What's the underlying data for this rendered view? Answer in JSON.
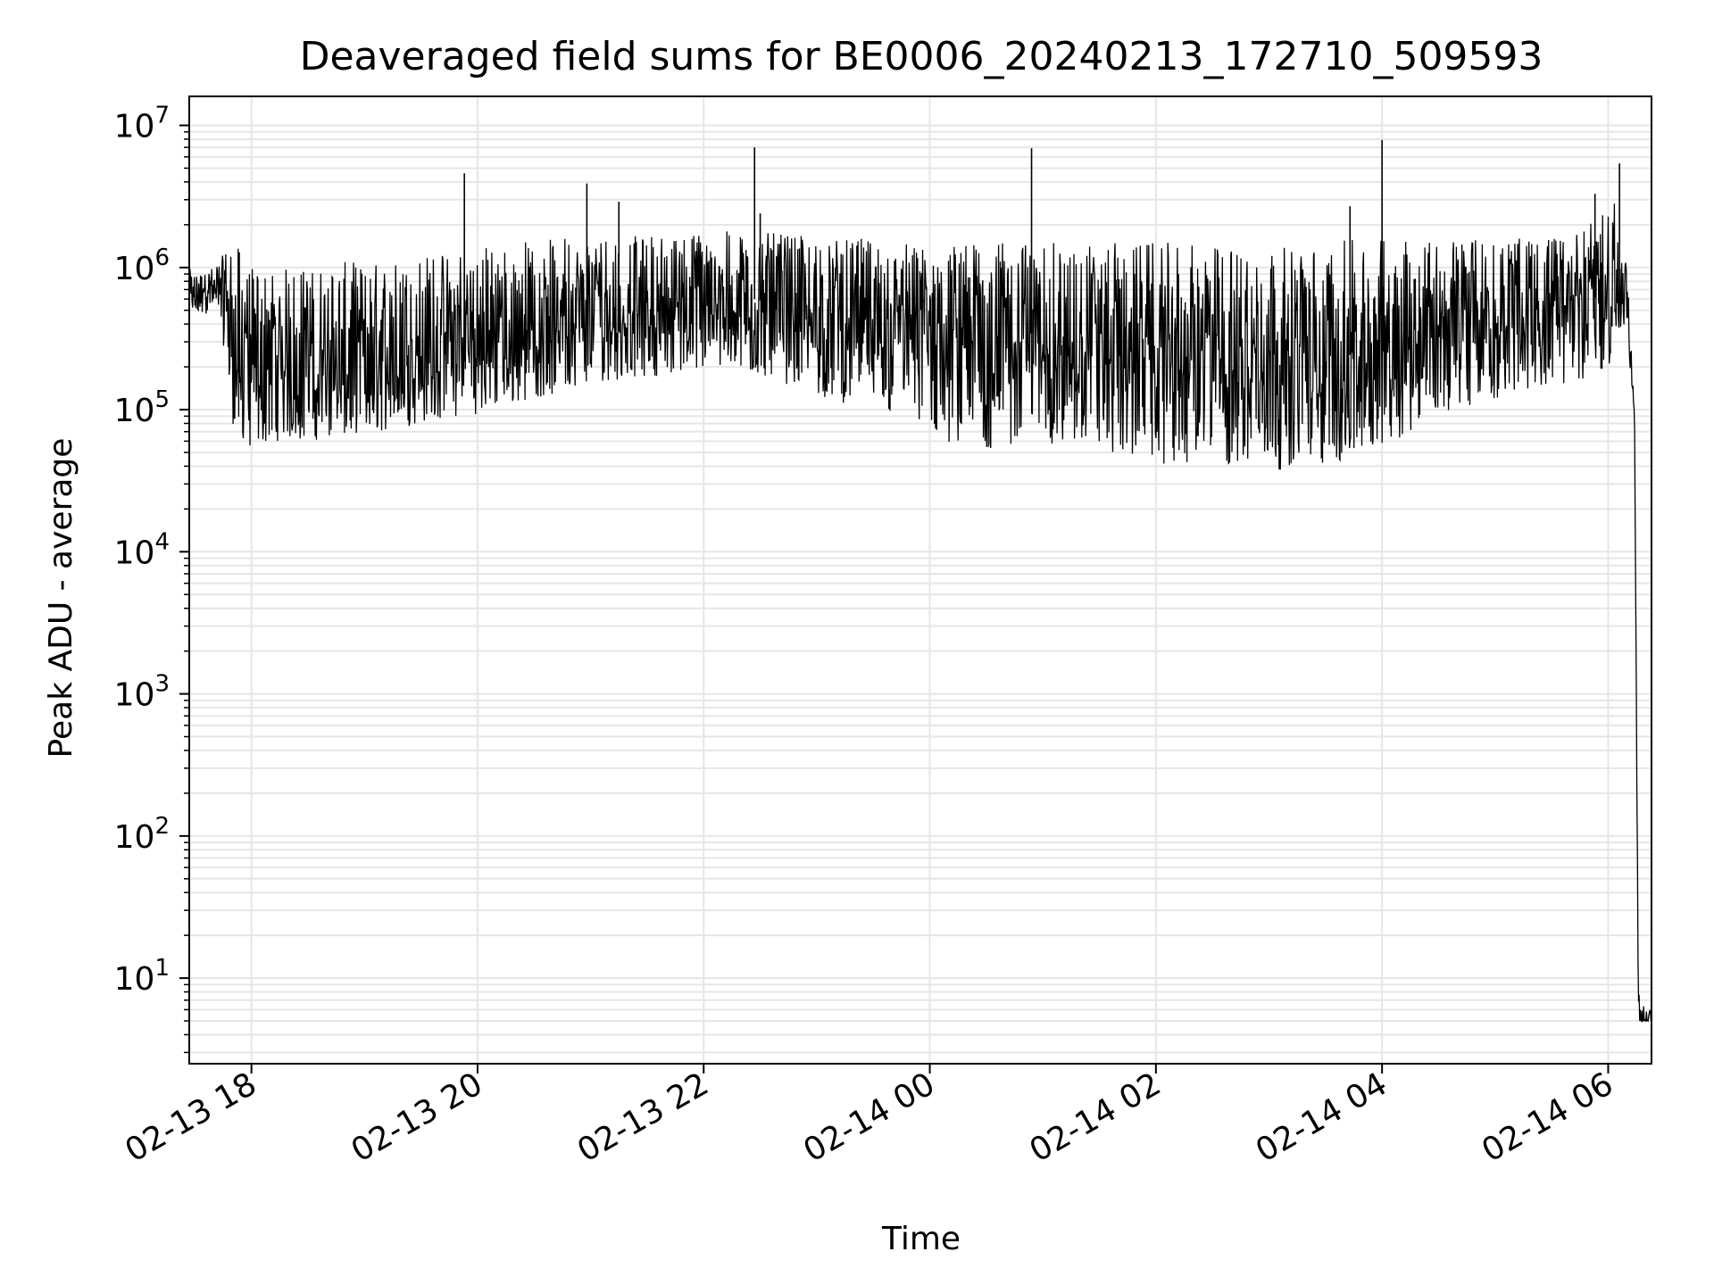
{
  "chart_data": {
    "type": "line",
    "title": "Deaveraged field sums for BE0006_20240213_172710_509593",
    "xlabel": "Time",
    "ylabel": "Peak ADU - average",
    "yscale": "log",
    "ylim": [
      2.5,
      16000000
    ],
    "xlim": [
      "2024-02-13 17:27",
      "2024-02-14 06:23"
    ],
    "grid": true,
    "line_color": "#000000",
    "grid_color": "#e6e6e6",
    "x_ticks": [
      {
        "value": "2024-02-13 18:00",
        "label": "02-13 18"
      },
      {
        "value": "2024-02-13 20:00",
        "label": "02-13 20"
      },
      {
        "value": "2024-02-13 22:00",
        "label": "02-13 22"
      },
      {
        "value": "2024-02-14 00:00",
        "label": "02-14 00"
      },
      {
        "value": "2024-02-14 02:00",
        "label": "02-14 02"
      },
      {
        "value": "2024-02-14 04:00",
        "label": "02-14 04"
      },
      {
        "value": "2024-02-14 06:00",
        "label": "02-14 06"
      }
    ],
    "y_ticks": [
      {
        "value": 10,
        "base": "10",
        "exp": "1"
      },
      {
        "value": 100,
        "base": "10",
        "exp": "2"
      },
      {
        "value": 1000,
        "base": "10",
        "exp": "3"
      },
      {
        "value": 10000,
        "base": "10",
        "exp": "4"
      },
      {
        "value": 100000,
        "base": "10",
        "exp": "5"
      },
      {
        "value": 1000000,
        "base": "10",
        "exp": "6"
      },
      {
        "value": 10000000,
        "base": "10",
        "exp": "7"
      }
    ],
    "series": [
      {
        "x": [
          "2024-02-13 17:27",
          "2024-02-13 17:35",
          "2024-02-13 17:43",
          "2024-02-13 17:50",
          "2024-02-13 17:58",
          "2024-02-13 18:10",
          "2024-02-13 18:30",
          "2024-02-13 18:50",
          "2024-02-13 19:10",
          "2024-02-13 19:30",
          "2024-02-13 19:54",
          "2024-02-13 20:10",
          "2024-02-13 20:30",
          "2024-02-13 20:50",
          "2024-02-13 20:58",
          "2024-02-13 21:10",
          "2024-02-13 21:30",
          "2024-02-13 21:50",
          "2024-02-13 22:10",
          "2024-02-13 22:27",
          "2024-02-13 22:45",
          "2024-02-13 23:05",
          "2024-02-13 23:25",
          "2024-02-13 23:45",
          "2024-02-14 00:05",
          "2024-02-14 00:25",
          "2024-02-14 00:45",
          "2024-02-14 00:55",
          "2024-02-14 01:10",
          "2024-02-14 01:30",
          "2024-02-14 01:50",
          "2024-02-14 02:10",
          "2024-02-14 02:30",
          "2024-02-14 02:50",
          "2024-02-14 03:10",
          "2024-02-14 03:30",
          "2024-02-14 03:50",
          "2024-02-14 04:00",
          "2024-02-14 04:20",
          "2024-02-14 04:40",
          "2024-02-14 05:00",
          "2024-02-14 05:20",
          "2024-02-14 05:40",
          "2024-02-14 05:50",
          "2024-02-14 06:00",
          "2024-02-14 06:05",
          "2024-02-14 06:10",
          "2024-02-14 06:14",
          "2024-02-14 06:16",
          "2024-02-14 06:20",
          "2024-02-14 06:23"
        ],
        "y": [
          700000,
          600000,
          750000,
          250000,
          180000,
          150000,
          160000,
          170000,
          180000,
          200000,
          220000,
          250000,
          350000,
          400000,
          420000,
          450000,
          480000,
          500000,
          550000,
          600000,
          520000,
          500000,
          450000,
          380000,
          300000,
          280000,
          270000,
          350000,
          260000,
          250000,
          240000,
          220000,
          200000,
          200000,
          210000,
          230000,
          250000,
          300000,
          350000,
          400000,
          450000,
          500000,
          550000,
          600000,
          650000,
          800000,
          700000,
          90000,
          5,
          5,
          5
        ],
        "y_low": [
          450000,
          450000,
          500000,
          80000,
          50000,
          60000,
          60000,
          65000,
          70000,
          80000,
          90000,
          100000,
          120000,
          130000,
          150000,
          160000,
          170000,
          180000,
          180000,
          170000,
          150000,
          120000,
          100000,
          80000,
          60000,
          55000,
          50000,
          70000,
          50000,
          48000,
          45000,
          40000,
          38000,
          36000,
          38000,
          40000,
          45000,
          50000,
          80000,
          100000,
          120000,
          140000,
          150000,
          160000,
          200000,
          300000,
          300000,
          90000,
          5,
          5,
          5
        ],
        "y_high": [
          1000000,
          900000,
          1100000,
          1700000,
          1000000,
          1000000,
          1000000,
          1100000,
          1100000,
          1300000,
          1400000,
          1500000,
          1600000,
          1700000,
          1700000,
          1700000,
          1700000,
          1800000,
          1800000,
          1800000,
          1700000,
          1600000,
          1600000,
          1500000,
          1500000,
          1500000,
          1500000,
          1500000,
          1500000,
          1500000,
          1500000,
          1500000,
          1400000,
          1500000,
          1400000,
          1500000,
          1600000,
          1600000,
          1700000,
          1600000,
          1600000,
          1600000,
          1700000,
          2000000,
          2500000,
          3500000,
          1000000,
          90000,
          8,
          6,
          6
        ],
        "spikes": [
          {
            "x": "2024-02-13 19:53",
            "y": 4600000
          },
          {
            "x": "2024-02-13 20:58",
            "y": 3900000
          },
          {
            "x": "2024-02-13 21:15",
            "y": 2900000
          },
          {
            "x": "2024-02-13 22:27",
            "y": 7000000
          },
          {
            "x": "2024-02-13 22:30",
            "y": 2400000
          },
          {
            "x": "2024-02-14 00:54",
            "y": 6900000
          },
          {
            "x": "2024-02-14 03:43",
            "y": 2700000
          },
          {
            "x": "2024-02-14 04:00",
            "y": 7900000
          },
          {
            "x": "2024-02-14 05:53",
            "y": 3300000
          },
          {
            "x": "2024-02-14 06:06",
            "y": 5400000
          }
        ]
      }
    ]
  }
}
